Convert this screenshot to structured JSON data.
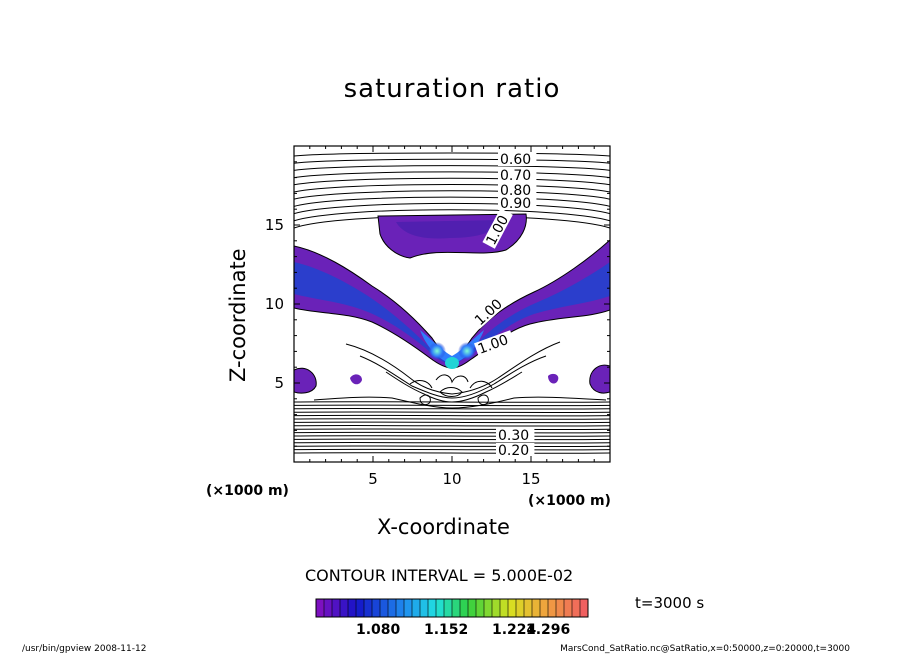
{
  "chart_data": {
    "type": "contour",
    "title": "saturation ratio",
    "xlabel": "X-coordinate",
    "ylabel": "Z-coordinate",
    "x_unit": "(×1000 m)",
    "z_unit": "(×1000 m)",
    "xlim": [
      0,
      20
    ],
    "ylim": [
      0,
      20
    ],
    "x_ticks": [
      5,
      10,
      15
    ],
    "y_ticks": [
      5,
      10,
      15
    ],
    "contour_interval_text": "CONTOUR INTERVAL = 5.000E-02",
    "contour_labels_upper": [
      "0.60",
      "0.70",
      "0.80",
      "0.90"
    ],
    "contour_labels_mid": [
      "1.00",
      "1.00",
      "1.00"
    ],
    "contour_labels_lower": [
      "0.30",
      "0.20"
    ],
    "colorbar_ticks": [
      "1.080",
      "1.152",
      "1.224",
      "1.296"
    ],
    "time_label": "t=3000 s"
  },
  "footer": {
    "left": "/usr/bin/gpview   2008-11-12",
    "right": "MarsCond_SatRatio.nc@SatRatio,x=0:50000,z=0:20000,t=3000"
  },
  "colors": {
    "purple": "#6a22b8",
    "blue": "#2b3ecc",
    "bright_blue": "#2f7dfc",
    "cyan": "#22d3d6"
  }
}
